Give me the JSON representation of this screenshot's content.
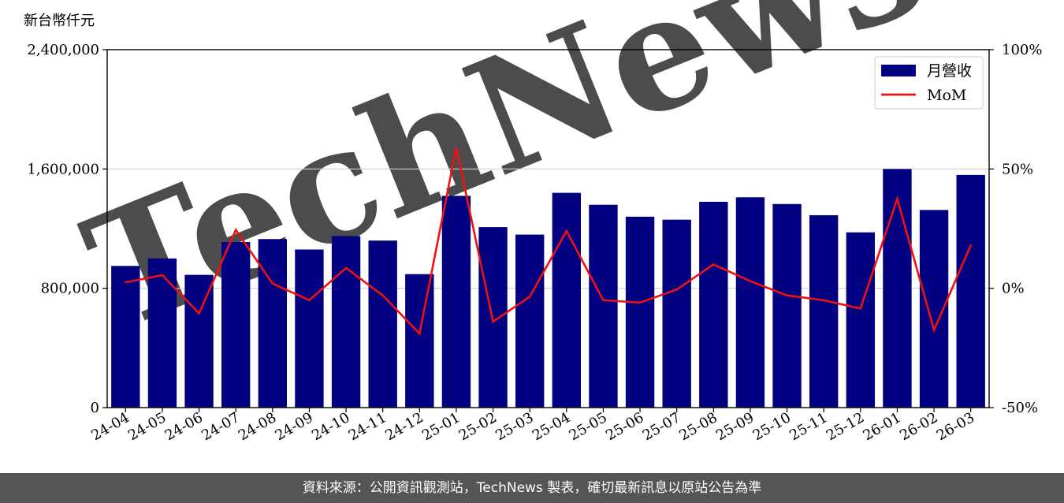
{
  "chart_data": {
    "type": "bar",
    "y_unit_label": "新台幣仟元",
    "categories": [
      "24-04",
      "24-05",
      "24-06",
      "24-07",
      "24-08",
      "24-09",
      "24-10",
      "24-11",
      "24-12",
      "25-01",
      "25-02",
      "25-03",
      "25-04",
      "25-05",
      "25-06",
      "25-07",
      "25-08",
      "25-09",
      "25-10",
      "25-11",
      "25-12",
      "26-01",
      "26-02",
      "26-03"
    ],
    "series": [
      {
        "name": "月營收",
        "type": "bar",
        "axis": "left",
        "color": "#000080",
        "values": [
          950000,
          1000000,
          890000,
          1110000,
          1130000,
          1060000,
          1150000,
          1120000,
          895000,
          1420000,
          1210000,
          1160000,
          1440000,
          1360000,
          1280000,
          1260000,
          1380000,
          1410000,
          1365000,
          1290000,
          1175000,
          1600000,
          1325000,
          1560000
        ]
      },
      {
        "name": "MoM",
        "type": "line",
        "axis": "right",
        "color": "#ee1111",
        "values": [
          2.5,
          5.5,
          -10.5,
          24.5,
          2.0,
          -5.0,
          8.5,
          -3.0,
          -19.0,
          59.0,
          -14.0,
          -3.5,
          24.0,
          -5.0,
          -6.0,
          -0.5,
          10.0,
          3.0,
          -3.0,
          -5.0,
          -8.5,
          37.5,
          -17.5,
          18.0
        ]
      }
    ],
    "y_left": {
      "min": 0,
      "max": 2400000,
      "ticks": [
        0,
        800000,
        1600000,
        2400000
      ],
      "tick_labels": [
        "0",
        "800,000",
        "1,600,000",
        "2,400,000"
      ]
    },
    "y_right": {
      "min": -50,
      "max": 100,
      "ticks": [
        -50,
        0,
        50,
        100
      ],
      "tick_labels": [
        "-50%",
        "0%",
        "50%",
        "100%"
      ]
    },
    "grid": "horizontal",
    "legend_position": "top-right",
    "legend": [
      {
        "label": "月營收",
        "kind": "bar",
        "color": "#000080"
      },
      {
        "label": "MoM",
        "kind": "line",
        "color": "#ee1111"
      }
    ],
    "watermark": "TechNews"
  },
  "footer": {
    "text": "資料來源：公開資訊觀測站，TechNews 製表，確切最新訊息以原站公告為準"
  }
}
